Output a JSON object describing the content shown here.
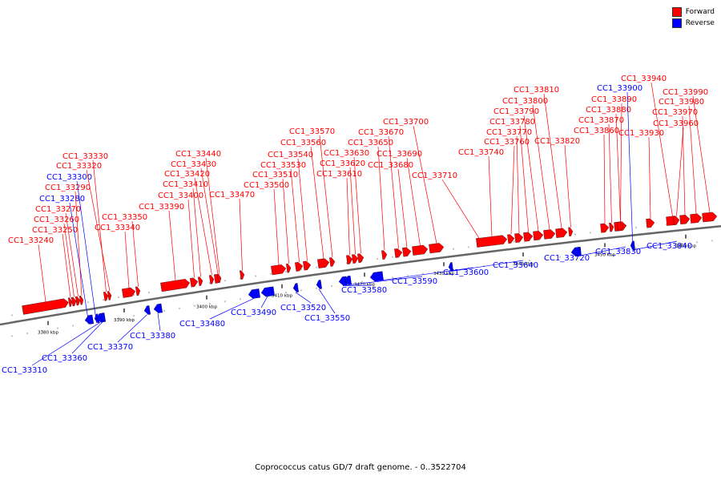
{
  "caption": "Coprococcus catus GD/7 draft genome. - 0..3522704",
  "legend": [
    {
      "label": "Forward",
      "color": "#ff0000"
    },
    {
      "label": "Reverse",
      "color": "#0000ff"
    }
  ],
  "colors": {
    "forward": "#ff0000",
    "reverse": "#0000ff",
    "backbone": "#666666"
  },
  "scale_ticks": [
    "3380 kbp",
    "3390 kbp",
    "3400 kbp",
    "3410 kbp",
    "3420 kbp",
    "3430 kbp",
    "3440 kbp",
    "3450 kbp",
    "3460 kbp"
  ],
  "genes": [
    {
      "id": "CC1_33240",
      "strand": "forward"
    },
    {
      "id": "CC1_33250",
      "strand": "forward"
    },
    {
      "id": "CC1_33260",
      "strand": "forward"
    },
    {
      "id": "CC1_33270",
      "strand": "forward"
    },
    {
      "id": "CC1_33280",
      "strand": "reverse"
    },
    {
      "id": "CC1_33290",
      "strand": "forward"
    },
    {
      "id": "CC1_33300",
      "strand": "reverse"
    },
    {
      "id": "CC1_33310",
      "strand": "reverse"
    },
    {
      "id": "CC1_33320",
      "strand": "forward"
    },
    {
      "id": "CC1_33330",
      "strand": "forward"
    },
    {
      "id": "CC1_33340",
      "strand": "forward"
    },
    {
      "id": "CC1_33350",
      "strand": "forward"
    },
    {
      "id": "CC1_33360",
      "strand": "reverse"
    },
    {
      "id": "CC1_33370",
      "strand": "reverse"
    },
    {
      "id": "CC1_33380",
      "strand": "reverse"
    },
    {
      "id": "CC1_33390",
      "strand": "forward"
    },
    {
      "id": "CC1_33400",
      "strand": "forward"
    },
    {
      "id": "CC1_33410",
      "strand": "forward"
    },
    {
      "id": "CC1_33420",
      "strand": "forward"
    },
    {
      "id": "CC1_33430",
      "strand": "forward"
    },
    {
      "id": "CC1_33440",
      "strand": "forward"
    },
    {
      "id": "CC1_33470",
      "strand": "forward"
    },
    {
      "id": "CC1_33480",
      "strand": "reverse"
    },
    {
      "id": "CC1_33490",
      "strand": "reverse"
    },
    {
      "id": "CC1_33500",
      "strand": "forward"
    },
    {
      "id": "CC1_33510",
      "strand": "forward"
    },
    {
      "id": "CC1_33520",
      "strand": "reverse"
    },
    {
      "id": "CC1_33530",
      "strand": "forward"
    },
    {
      "id": "CC1_33540",
      "strand": "forward"
    },
    {
      "id": "CC1_33550",
      "strand": "reverse"
    },
    {
      "id": "CC1_33560",
      "strand": "forward"
    },
    {
      "id": "CC1_33570",
      "strand": "forward"
    },
    {
      "id": "CC1_33580",
      "strand": "reverse"
    },
    {
      "id": "CC1_33590",
      "strand": "reverse"
    },
    {
      "id": "CC1_33600",
      "strand": "reverse"
    },
    {
      "id": "CC1_33610",
      "strand": "forward"
    },
    {
      "id": "CC1_33620",
      "strand": "forward"
    },
    {
      "id": "CC1_33630",
      "strand": "forward"
    },
    {
      "id": "CC1_33640",
      "strand": "reverse"
    },
    {
      "id": "CC1_33650",
      "strand": "forward"
    },
    {
      "id": "CC1_33670",
      "strand": "forward"
    },
    {
      "id": "CC1_33680",
      "strand": "forward"
    },
    {
      "id": "CC1_33690",
      "strand": "forward"
    },
    {
      "id": "CC1_33700",
      "strand": "forward"
    },
    {
      "id": "CC1_33710",
      "strand": "forward"
    },
    {
      "id": "CC1_33720",
      "strand": "reverse"
    },
    {
      "id": "CC1_33740",
      "strand": "forward"
    },
    {
      "id": "CC1_33760",
      "strand": "forward"
    },
    {
      "id": "CC1_33770",
      "strand": "forward"
    },
    {
      "id": "CC1_33780",
      "strand": "forward"
    },
    {
      "id": "CC1_33790",
      "strand": "forward"
    },
    {
      "id": "CC1_33800",
      "strand": "forward"
    },
    {
      "id": "CC1_33810",
      "strand": "forward"
    },
    {
      "id": "CC1_33820",
      "strand": "forward"
    },
    {
      "id": "CC1_33830",
      "strand": "reverse"
    },
    {
      "id": "CC1_33840",
      "strand": "reverse"
    },
    {
      "id": "CC1_33860",
      "strand": "forward"
    },
    {
      "id": "CC1_33870",
      "strand": "forward"
    },
    {
      "id": "CC1_33880",
      "strand": "forward"
    },
    {
      "id": "CC1_33890",
      "strand": "forward"
    },
    {
      "id": "CC1_33900",
      "strand": "reverse"
    },
    {
      "id": "CC1_33930",
      "strand": "forward"
    },
    {
      "id": "CC1_33940",
      "strand": "forward"
    },
    {
      "id": "CC1_33960",
      "strand": "forward"
    },
    {
      "id": "CC1_33970",
      "strand": "forward"
    },
    {
      "id": "CC1_33980",
      "strand": "forward"
    },
    {
      "id": "CC1_33990",
      "strand": "forward"
    }
  ]
}
